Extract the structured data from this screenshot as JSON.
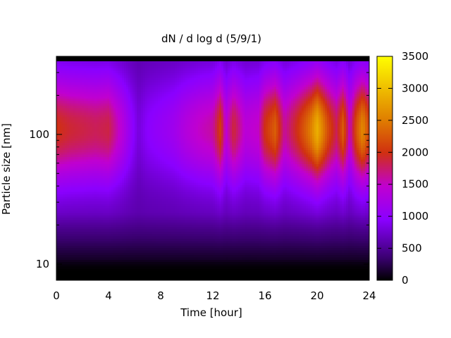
{
  "chart_data": {
    "type": "heatmap",
    "title": "dN / d log d (5/9/1)",
    "xlabel": "Time [hour]",
    "ylabel": "Particle size [nm]",
    "xlim": [
      0,
      24
    ],
    "x_ticks": [
      "0",
      "4",
      "8",
      "12",
      "16",
      "20",
      "24"
    ],
    "y_scale": "log",
    "ylim": [
      7.5,
      400
    ],
    "y_ticks": [
      "10",
      "100"
    ],
    "colorbar": {
      "range": [
        0,
        3500
      ],
      "ticks": [
        "0",
        "500",
        "1000",
        "1500",
        "2000",
        "2500",
        "3000",
        "3500"
      ]
    },
    "colormap": [
      "#000000",
      "#3a0070",
      "#8a00ff",
      "#c000d0",
      "#d03010",
      "#e08000",
      "#ffff00"
    ],
    "peak_diameter_nm": 110,
    "time_intensity_profile": {
      "hours": [
        0,
        1,
        2,
        3,
        4,
        5,
        5.8,
        6.3,
        7,
        8,
        9,
        10,
        11,
        12,
        12.6,
        13,
        13.6,
        14.5,
        15.5,
        16,
        16.8,
        17.5,
        18.5,
        19.5,
        20,
        20.8,
        21.5,
        22,
        22.5,
        23,
        23.5,
        24
      ],
      "peak_values": [
        2000,
        1900,
        1850,
        1800,
        1850,
        1400,
        1000,
        800,
        950,
        1050,
        1150,
        1350,
        1500,
        1600,
        2100,
        1400,
        1900,
        1400,
        1500,
        2000,
        2300,
        1600,
        2000,
        2500,
        2900,
        2200,
        1800,
        2300,
        1500,
        2200,
        2600,
        2100
      ]
    }
  }
}
